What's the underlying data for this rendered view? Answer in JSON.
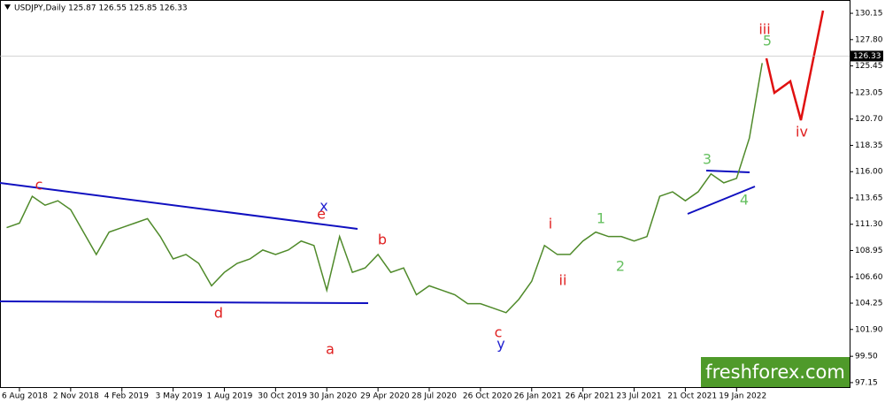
{
  "chart_data": {
    "type": "line",
    "title": "USDJPY,Daily  125.87 126.55 125.85 126.33",
    "categories": [
      null,
      "6 Aug 2018",
      null,
      null,
      null,
      "2 Nov 2018",
      null,
      null,
      null,
      "4 Feb 2019",
      null,
      null,
      null,
      "3 May 2019",
      null,
      null,
      null,
      "1 Aug 2019",
      null,
      null,
      null,
      "30 Oct 2019",
      null,
      null,
      null,
      "30 Jan 2020",
      null,
      null,
      null,
      "29 Apr 2020",
      null,
      null,
      null,
      "28 Jul 2020",
      null,
      null,
      null,
      "26 Oct 2020",
      null,
      null,
      null,
      "26 Jan 2021",
      null,
      null,
      null,
      "26 Apr 2021",
      null,
      null,
      null,
      "23 Jul 2021",
      null,
      null,
      null,
      "21 Oct 2021",
      null,
      null,
      null,
      "19 Jan 2022",
      null,
      null
    ],
    "series": [
      {
        "name": "USDJPY",
        "color": "#4f8a2a",
        "values": [
          111.0,
          111.4,
          113.8,
          113.0,
          113.4,
          112.6,
          110.6,
          108.6,
          110.6,
          111.0,
          111.4,
          111.8,
          110.2,
          108.2,
          108.6,
          107.8,
          105.8,
          107.0,
          107.8,
          108.2,
          109.0,
          108.6,
          109.0,
          109.8,
          109.4,
          105.4,
          110.2,
          107.0,
          107.4,
          108.6,
          107.0,
          107.4,
          105.0,
          105.8,
          105.4,
          105.0,
          104.2,
          104.2,
          103.8,
          103.4,
          104.6,
          106.2,
          109.4,
          108.6,
          108.6,
          109.8,
          110.6,
          110.2,
          110.2,
          109.8,
          110.2,
          113.8,
          114.2,
          113.4,
          114.2,
          115.8,
          115.0,
          115.4,
          119.0,
          125.7
        ]
      }
    ],
    "ylim": [
      96.67,
      131.26
    ],
    "yticks": [
      97.15,
      {
        "value": 99.5,
        "label": "99.50"
      },
      {
        "value": 101.9,
        "label": "101.90"
      },
      104.25,
      {
        "value": 106.6,
        "label": "106.60"
      },
      108.95,
      {
        "value": 111.3,
        "label": "111.30"
      },
      113.65,
      {
        "value": 116,
        "label": "116.00"
      },
      118.35,
      {
        "value": 120.7,
        "label": "120.70"
      },
      123.05,
      125.45,
      {
        "value": 127.8,
        "label": "127.80"
      },
      130.15
    ],
    "current_price": 126.33,
    "grid": false,
    "annotations": [
      {
        "text": "c",
        "color": "#e02020"
      },
      {
        "text": "e",
        "color": "#e02020"
      },
      {
        "text": "x",
        "color": "#2020d0"
      },
      {
        "text": "d",
        "color": "#e02020"
      },
      {
        "text": "a",
        "color": "#e02020"
      },
      {
        "text": "b",
        "color": "#e02020"
      },
      {
        "text": "c",
        "color": "#e02020"
      },
      {
        "text": "y",
        "color": "#2020d0"
      },
      {
        "text": "i",
        "color": "#e02020"
      },
      {
        "text": "ii",
        "color": "#e02020"
      },
      {
        "text": "1",
        "color": "#66c060"
      },
      {
        "text": "2",
        "color": "#66c060"
      },
      {
        "text": "3",
        "color": "#66c060"
      },
      {
        "text": "4",
        "color": "#66c060"
      },
      {
        "text": "5",
        "color": "#66c060"
      },
      {
        "text": "iii",
        "color": "#e02020"
      },
      {
        "text": "iv",
        "color": "#e02020"
      }
    ],
    "watermark": "freshforex.com"
  }
}
